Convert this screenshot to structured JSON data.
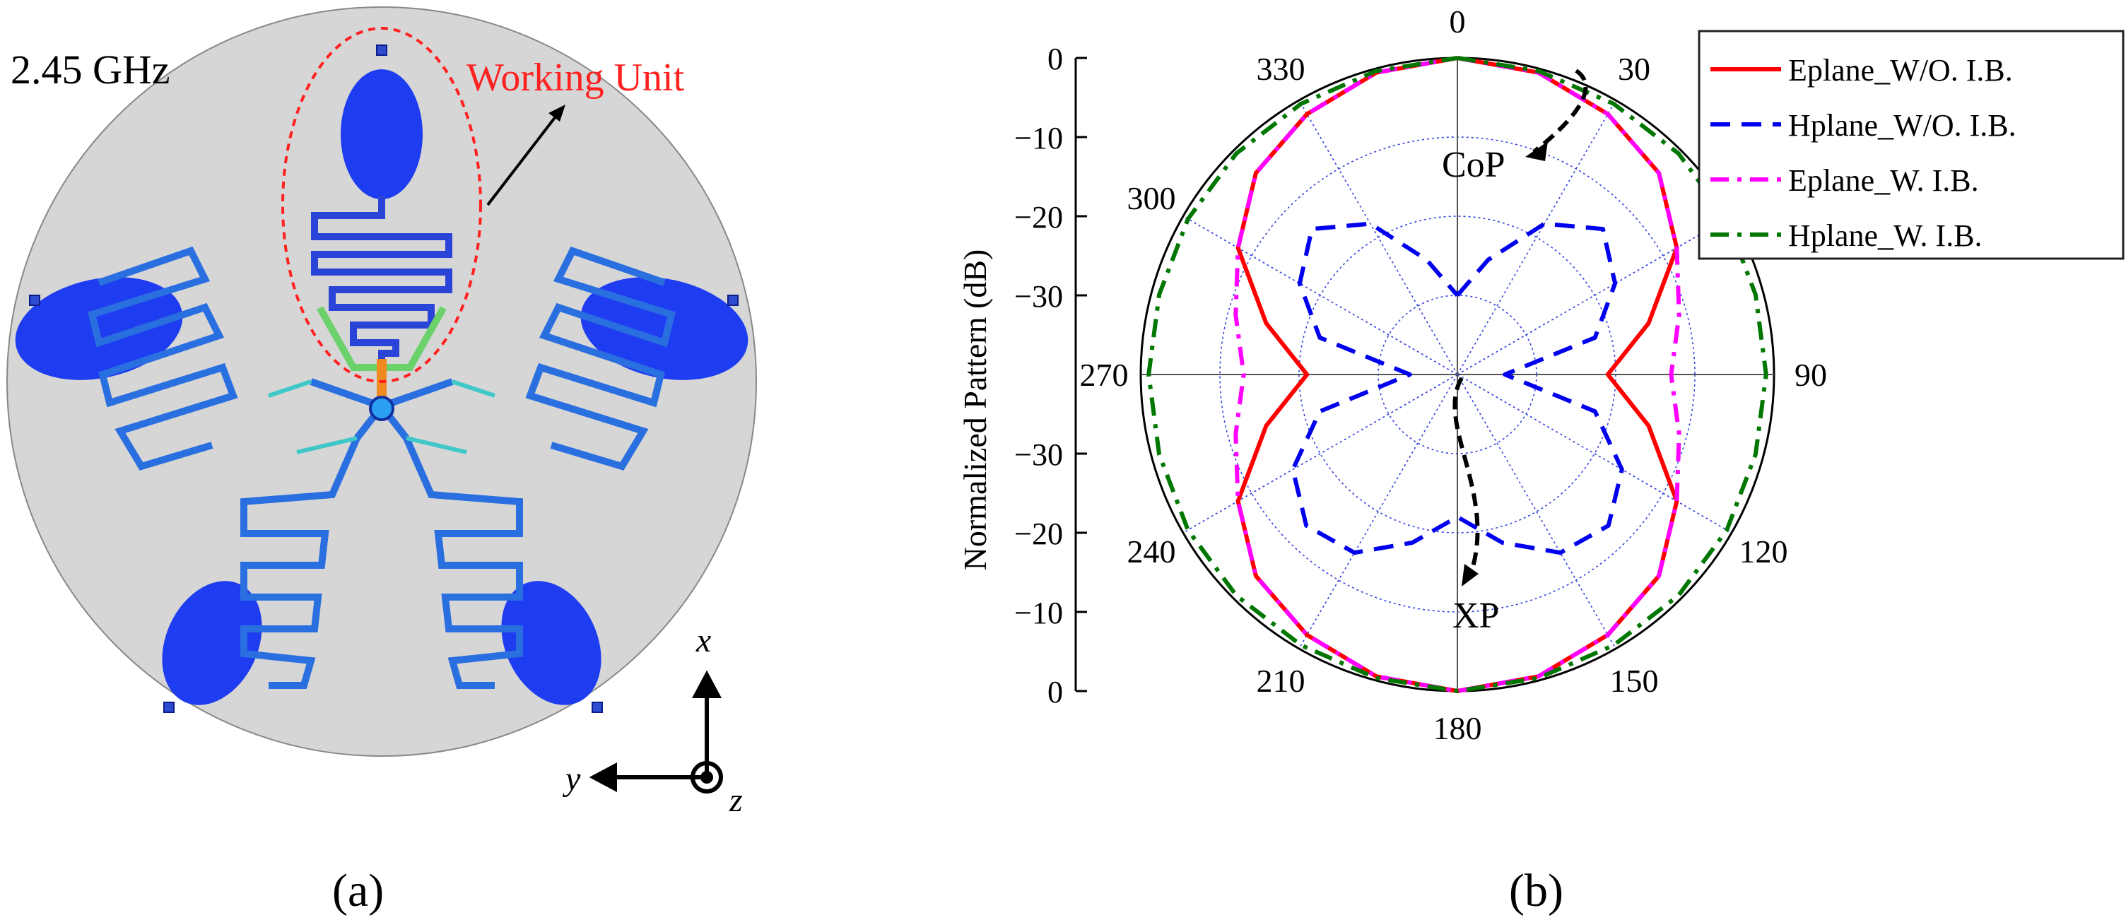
{
  "panel_a": {
    "frequency_label": "2.45 GHz",
    "callout_label": "Working Unit",
    "axes": {
      "x": "x",
      "y": "y",
      "z": "z"
    },
    "caption": "(a)",
    "colors": {
      "substrate": "#d6d6d6",
      "element": "#1e3cf0",
      "callout": "#ff2020"
    }
  },
  "panel_b": {
    "caption": "(b)"
  },
  "chart_data": {
    "type": "polar",
    "title": "",
    "ylabel": "Normalized Pattern (dB)",
    "r_range": [
      -40,
      0
    ],
    "r_ticks": [
      "0",
      "−10",
      "−20",
      "−30",
      "−30",
      "−20",
      "−10",
      "0"
    ],
    "angle_ticks": [
      "0",
      "30",
      "90",
      "120",
      "150",
      "180",
      "210",
      "240",
      "270",
      "300",
      "330"
    ],
    "grid": true,
    "legend_position": "top-right",
    "theta_deg": [
      0,
      15,
      30,
      45,
      60,
      75,
      90,
      105,
      120,
      135,
      150,
      165,
      180,
      195,
      210,
      225,
      240,
      255,
      270,
      285,
      300,
      315,
      330,
      345
    ],
    "series": [
      {
        "name": "Eplane_W/O. I.B.",
        "color": "#ff0000",
        "dash": "solid",
        "values": [
          0,
          -0.5,
          -2,
          -4,
          -8,
          -15,
          -21,
          -15,
          -8,
          -4,
          -2,
          -0.5,
          0,
          -0.5,
          -2,
          -4,
          -8,
          -15,
          -21,
          -15,
          -8,
          -4,
          -2,
          -0.5
        ]
      },
      {
        "name": "Hplane_W/O. I.B.",
        "color": "#0000ee",
        "dash": "dash",
        "values": [
          -30,
          -25,
          -18,
          -14,
          -17,
          -22,
          -34,
          -22,
          -16,
          -13,
          -14,
          -18,
          -22,
          -18,
          -14,
          -13,
          -16,
          -22,
          -34,
          -22,
          -17,
          -14,
          -18,
          -25
        ]
      },
      {
        "name": "Eplane_W. I.B.",
        "color": "#ff00ff",
        "dash": "dashdot",
        "values": [
          0,
          -0.5,
          -2,
          -4,
          -8,
          -11,
          -13,
          -11,
          -8,
          -4,
          -2,
          -0.5,
          0,
          -0.5,
          -2,
          -4,
          -8,
          -11,
          -13,
          -11,
          -8,
          -4,
          -2,
          -0.5
        ]
      },
      {
        "name": "Hplane_W. I.B.",
        "color": "#007700",
        "dash": "dashdot",
        "values": [
          0,
          -0.3,
          -0.5,
          -0.5,
          -0.7,
          -1,
          -1,
          -1,
          -0.7,
          -0.5,
          -0.5,
          -0.3,
          0,
          -0.3,
          -0.5,
          -0.5,
          -0.7,
          -1,
          -1,
          -1,
          -0.7,
          -0.5,
          -0.5,
          -0.3
        ]
      }
    ],
    "annotations": [
      "CoP",
      "XP"
    ]
  }
}
